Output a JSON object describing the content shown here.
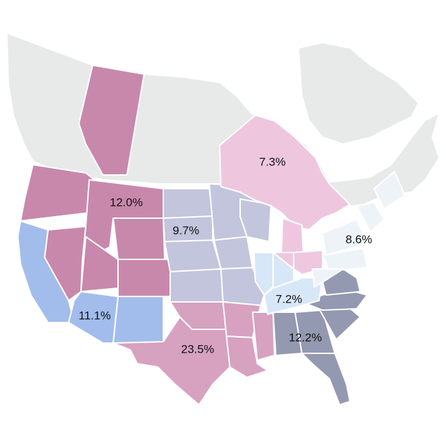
{
  "colors": {
    "background_land": "#e8e9e9",
    "pacific_northwest": "#c888ab",
    "california_southwest": "#a2bcec",
    "plains": "#c2c5dc",
    "south_central": "#d7a1c0",
    "southeast": "#9499b2",
    "ontario_great_lakes": "#eec7df",
    "ohio_valley": "#d8e7f7",
    "northeast": "#eef3f8"
  },
  "regions": [
    {
      "key": "pacific_northwest",
      "label": "12.0%"
    },
    {
      "key": "plains",
      "label": "9.7%"
    },
    {
      "key": "ontario_great_lakes",
      "label": "7.3%"
    },
    {
      "key": "northeast",
      "label": "8.6%"
    },
    {
      "key": "california_southwest",
      "label": "11.1%"
    },
    {
      "key": "ohio_valley",
      "label": "7.2%"
    },
    {
      "key": "southeast",
      "label": "12.2%"
    },
    {
      "key": "south_central",
      "label": "23.5%"
    }
  ]
}
